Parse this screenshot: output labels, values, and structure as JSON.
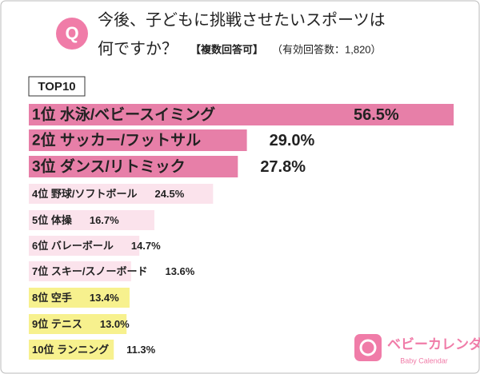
{
  "header": {
    "icon": "Q",
    "title_line1": "今後、子どもに挑戦させたいスポーツは",
    "title_line2": "何ですか？",
    "note": "【複数回答可】",
    "respondents": "（有効回答数：1,820）"
  },
  "chart_data": {
    "type": "bar",
    "orientation": "horizontal",
    "subtitle": "TOP10",
    "categories": [
      "1位 水泳/ベビースイミング",
      "2位 サッカー/フットサル",
      "3位 ダンス/リトミック",
      "4位 野球/ソフトボール",
      "5位 体操",
      "6位 バレーボール",
      "7位 スキー/スノーボード",
      "8位 空手",
      "9位 テニス",
      "10位 ランニング"
    ],
    "values": [
      56.5,
      29.0,
      27.8,
      24.5,
      16.7,
      14.7,
      13.6,
      13.4,
      13.0,
      11.3
    ],
    "value_labels": [
      "56.5%",
      "29.0%",
      "27.8%",
      "24.5%",
      "16.7%",
      "14.7%",
      "13.6%",
      "13.4%",
      "13.0%",
      "11.3%"
    ],
    "colors": [
      "#e77fa8",
      "#e77fa8",
      "#e77fa8",
      "#fbe3ec",
      "#fbe3ec",
      "#fbe3ec",
      "#fbe3ec",
      "#f7f18e",
      "#f7f18e",
      "#f7f18e"
    ],
    "xlim": [
      0,
      60
    ]
  },
  "logo": {
    "name": "ベビーカレンダー",
    "sub": "Baby Calendar"
  }
}
